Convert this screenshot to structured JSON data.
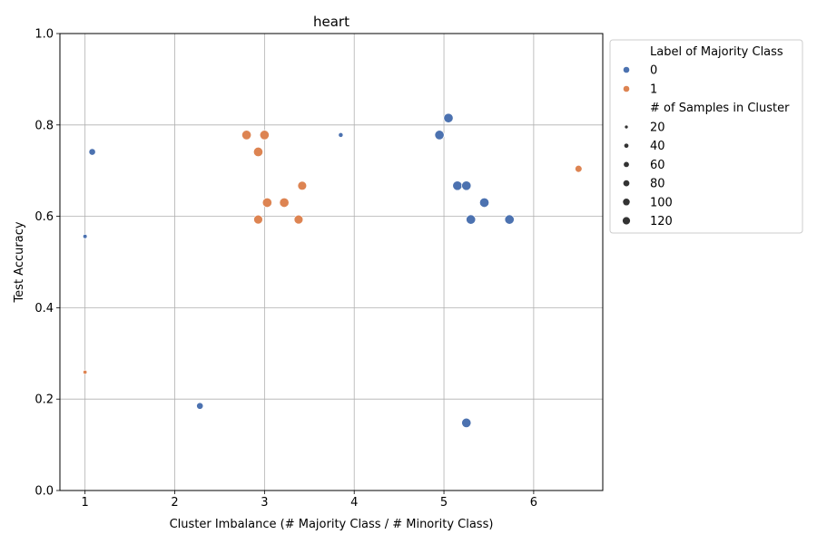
{
  "chart_data": {
    "type": "scatter",
    "title": "heart",
    "xlabel": "Cluster Imbalance (# Majority Class / # Minority Class)",
    "ylabel": "Test Accuracy",
    "xlim": [
      0.72,
      6.77
    ],
    "ylim": [
      0.0,
      1.0
    ],
    "xticks": [
      1,
      2,
      3,
      4,
      5,
      6
    ],
    "xtick_labels": [
      "1",
      "2",
      "3",
      "4",
      "5",
      "6"
    ],
    "yticks": [
      0.0,
      0.2,
      0.4,
      0.6,
      0.8,
      1.0
    ],
    "ytick_labels": [
      "0.0",
      "0.2",
      "0.4",
      "0.6",
      "0.8",
      "1.0"
    ],
    "grid": true,
    "legend_position": "outside-right",
    "colors": {
      "0": "#4c72b0",
      "1": "#dd8452"
    },
    "hue_legend": {
      "title": "Label of Majority Class",
      "items": [
        {
          "label": "0",
          "color": "#4c72b0"
        },
        {
          "label": "1",
          "color": "#dd8452"
        }
      ]
    },
    "size_legend": {
      "title": "# of Samples in Cluster",
      "items": [
        {
          "label": "20",
          "value": 20
        },
        {
          "label": "40",
          "value": 40
        },
        {
          "label": "60",
          "value": 60
        },
        {
          "label": "80",
          "value": 80
        },
        {
          "label": "100",
          "value": 100
        },
        {
          "label": "120",
          "value": 120
        }
      ]
    },
    "series": [
      {
        "name": "0",
        "color": "#4c72b0",
        "points": [
          {
            "x": 1.0,
            "y": 0.556,
            "size": 20
          },
          {
            "x": 1.08,
            "y": 0.741,
            "size": 50
          },
          {
            "x": 2.28,
            "y": 0.185,
            "size": 50
          },
          {
            "x": 3.85,
            "y": 0.778,
            "size": 25
          },
          {
            "x": 4.95,
            "y": 0.778,
            "size": 100
          },
          {
            "x": 5.05,
            "y": 0.815,
            "size": 100
          },
          {
            "x": 5.15,
            "y": 0.667,
            "size": 100
          },
          {
            "x": 5.25,
            "y": 0.667,
            "size": 100
          },
          {
            "x": 5.25,
            "y": 0.148,
            "size": 100
          },
          {
            "x": 5.3,
            "y": 0.593,
            "size": 100
          },
          {
            "x": 5.45,
            "y": 0.63,
            "size": 100
          },
          {
            "x": 5.73,
            "y": 0.593,
            "size": 100
          }
        ]
      },
      {
        "name": "1",
        "color": "#dd8452",
        "points": [
          {
            "x": 1.0,
            "y": 0.259,
            "size": 18
          },
          {
            "x": 2.8,
            "y": 0.778,
            "size": 100
          },
          {
            "x": 2.93,
            "y": 0.741,
            "size": 100
          },
          {
            "x": 2.93,
            "y": 0.593,
            "size": 90
          },
          {
            "x": 3.0,
            "y": 0.778,
            "size": 100
          },
          {
            "x": 3.03,
            "y": 0.63,
            "size": 100
          },
          {
            "x": 3.22,
            "y": 0.63,
            "size": 100
          },
          {
            "x": 3.38,
            "y": 0.593,
            "size": 90
          },
          {
            "x": 3.42,
            "y": 0.667,
            "size": 90
          },
          {
            "x": 6.5,
            "y": 0.704,
            "size": 55
          }
        ]
      }
    ]
  }
}
